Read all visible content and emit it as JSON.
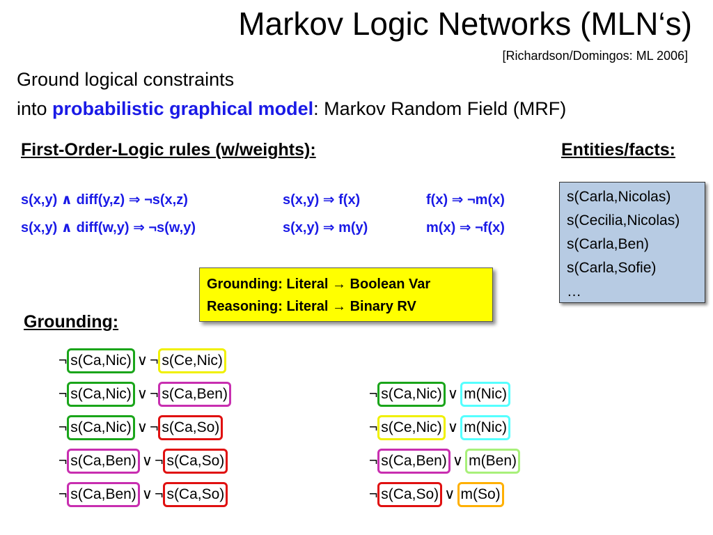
{
  "title": "Markov Logic Networks (MLN‘s)",
  "citation": "[Richardson/Domingos: ML 2006]",
  "intro": {
    "line1": "Ground logical constraints",
    "line2_prefix": "into ",
    "line2_highlight": "probabilistic graphical model",
    "line2_suffix": ": Markov Random Field (MRF)"
  },
  "rules_heading": "First-Order-Logic rules (w/weights):",
  "facts_heading": "Entities/facts:",
  "rules": [
    "s(x,y) ∧ diff(y,z) ⇒ ¬s(x,z)",
    "s(x,y) ⇒ f(x)",
    "f(x) ⇒ ¬m(x)",
    "s(x,y) ∧ diff(w,y) ⇒ ¬s(w,y)",
    "s(x,y) ⇒ m(y)",
    "m(x) ⇒ ¬f(x)"
  ],
  "facts": [
    "s(Carla,Nicolas)",
    "s(Cecilia,Nicolas)",
    "s(Carla,Ben)",
    "s(Carla,Sofie)",
    "…"
  ],
  "grounding_box": {
    "line1": "Grounding: Literal → Boolean Var",
    "line2": "Reasoning: Literal → Binary RV"
  },
  "grounding_heading": "Grounding:",
  "symbols": {
    "neg": "¬",
    "or": "∨"
  },
  "colors": {
    "green": "#1aa51a",
    "yellow": "#f0f000",
    "magenta": "#c82eb0",
    "red": "#e01010",
    "cyan": "#55ffff",
    "lime": "#a8f07a",
    "orange": "#ffb000",
    "highlight_text": "#1a1ae6",
    "facts_box": "#b7cbe3",
    "grounding_box": "#ffff00"
  },
  "ground_clauses_left": [
    [
      "s(Ca,Nic)",
      "s(Ce,Nic)"
    ],
    [
      "s(Ca,Nic)",
      "s(Ca,Ben)"
    ],
    [
      "s(Ca,Nic)",
      "s(Ca,So)"
    ],
    [
      "s(Ca,Ben)",
      "s(Ca,So)"
    ],
    [
      "s(Ca,Ben)",
      "s(Ca,So)"
    ]
  ],
  "ground_clauses_right": [
    [
      "s(Ca,Nic)",
      "m(Nic)"
    ],
    [
      "s(Ce,Nic)",
      "m(Nic)"
    ],
    [
      "s(Ca,Ben)",
      "m(Ben)"
    ],
    [
      "s(Ca,So)",
      "m(So)"
    ]
  ]
}
